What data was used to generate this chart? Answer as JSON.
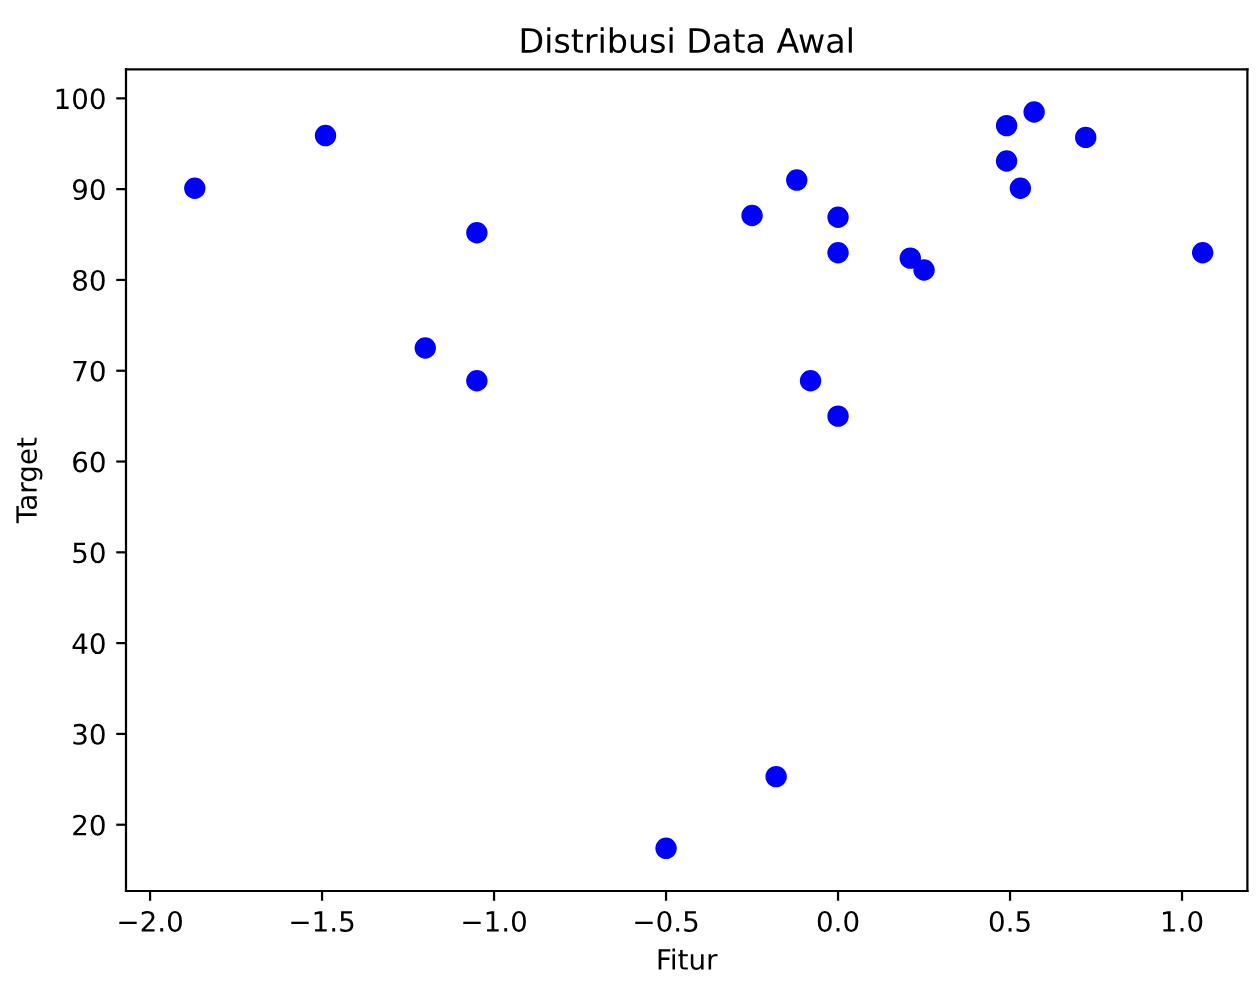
{
  "chart_data": {
    "type": "scatter",
    "title": "Distribusi Data Awal",
    "xlabel": "Fitur",
    "ylabel": "Target",
    "x": [
      -1.87,
      -1.49,
      -1.2,
      -1.05,
      -1.05,
      -0.5,
      -0.25,
      -0.18,
      -0.12,
      -0.08,
      0.0,
      0.0,
      0.0,
      0.21,
      0.25,
      0.49,
      0.49,
      0.53,
      0.57,
      0.72,
      1.06
    ],
    "series": [
      {
        "color": "#0000ff",
        "values": [
          90.1,
          95.9,
          72.5,
          85.2,
          68.9,
          17.4,
          87.1,
          25.3,
          91.0,
          68.9,
          86.9,
          83.0,
          65.0,
          82.4,
          81.1,
          97.0,
          93.1,
          90.1,
          98.5,
          95.7,
          83.0
        ]
      }
    ],
    "marker": "circle",
    "grid": false,
    "legend": false,
    "xlim": [
      -2.07,
      1.19
    ],
    "ylim": [
      12.7,
      103.2
    ],
    "xticks": [
      {
        "value": -2.0,
        "label": "−2.0"
      },
      {
        "value": -1.5,
        "label": "−1.5"
      },
      {
        "value": -1.0,
        "label": "−1.0"
      },
      {
        "value": -0.5,
        "label": "−0.5"
      },
      {
        "value": 0.0,
        "label": "0.0"
      },
      {
        "value": 0.5,
        "label": "0.5"
      },
      {
        "value": 1.0,
        "label": "1.0"
      }
    ],
    "yticks": [
      20,
      30,
      40,
      50,
      60,
      70,
      80,
      90,
      100
    ]
  }
}
